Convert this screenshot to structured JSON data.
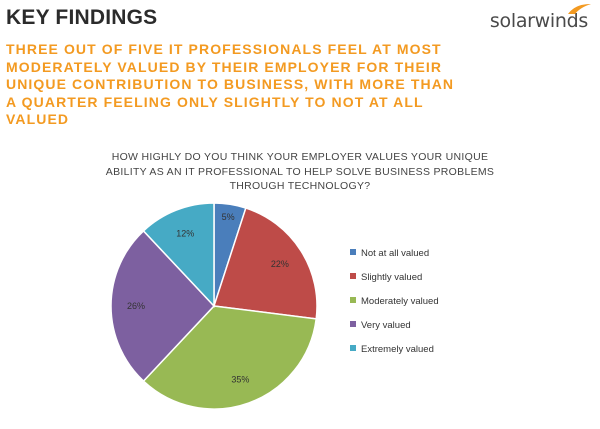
{
  "header": {
    "title": "KEY FINDINGS",
    "brand": "solarwinds"
  },
  "headline": "THREE OUT OF FIVE IT PROFESSIONALS FEEL AT MOST MODERATELY VALUED BY THEIR EMPLOYER FOR THEIR UNIQUE CONTRIBUTION TO BUSINESS, WITH MORE THAN A QUARTER FEELING ONLY SLIGHTLY TO NOT AT ALL VALUED",
  "colors": {
    "headline": "#f39a21",
    "brand_mark": "#f39a21"
  },
  "chart_data": {
    "type": "pie",
    "title": "HOW HIGHLY DO YOU THINK YOUR EMPLOYER VALUES YOUR UNIQUE ABILITY AS AN IT PROFESSIONAL TO HELP SOLVE BUSINESS PROBLEMS THROUGH TECHNOLOGY?",
    "legend_position": "right",
    "slices": [
      {
        "label": "Not at all valued",
        "value": 5,
        "display": "5%",
        "color": "#4a7ebb"
      },
      {
        "label": "Slightly valued",
        "value": 22,
        "display": "22%",
        "color": "#be4b48"
      },
      {
        "label": "Moderately valued",
        "value": 35,
        "display": "35%",
        "color": "#98b954"
      },
      {
        "label": "Very valued",
        "value": 26,
        "display": "26%",
        "color": "#7d60a0"
      },
      {
        "label": "Extremely valued",
        "value": 12,
        "display": "12%",
        "color": "#46aac5"
      }
    ]
  }
}
